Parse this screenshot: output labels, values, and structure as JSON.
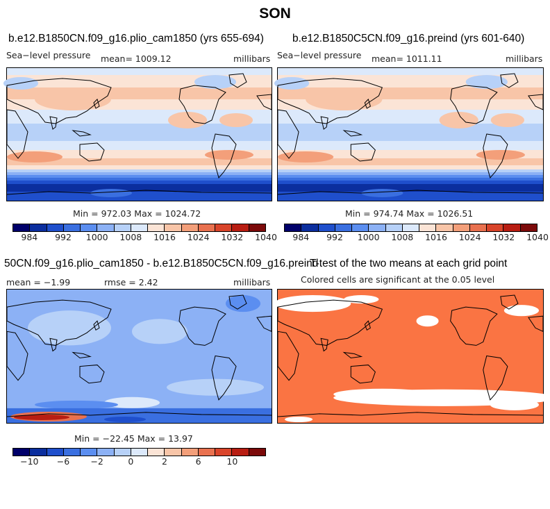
{
  "page_title": "SON",
  "palette": [
    "#00006a",
    "#0b2e9e",
    "#1f4fcc",
    "#3a6fe0",
    "#5b8ef0",
    "#8cb1f5",
    "#b7d1f8",
    "#dce9fb",
    "#fbe4d6",
    "#f8c5a8",
    "#f39f7a",
    "#e9714f",
    "#d9442a",
    "#b81d12",
    "#7c0a0a"
  ],
  "colors": {
    "significant": "#fa7443",
    "not_significant": "#ffffff",
    "coast": "#000000"
  },
  "panels": {
    "p1": {
      "title": "b.e12.B1850CN.f09_g16.plio_cam1850 (yrs 655-694)",
      "variable": "Sea−level pressure",
      "mean": "mean= 1009.12",
      "units": "millibars",
      "minmax": "Min = 972.03 Max = 1024.72"
    },
    "p2": {
      "title": "b.e12.B1850C5CN.f09_g16.preind (yrs 601-640)",
      "variable": "Sea−level pressure",
      "mean": "mean= 1011.11",
      "units": "millibars",
      "minmax": "Min = 974.74 Max = 1026.51"
    },
    "p3": {
      "title": "50CN.f09_g16.plio_cam1850 - b.e12.B1850C5CN.f09_g16.preind",
      "mean": "mean =   −1.99",
      "rmse": "rmse =    2.42",
      "units": "millibars",
      "minmax": "Min = −22.45 Max =   13.97"
    },
    "p4": {
      "title": "T-test of the two means at each grid point",
      "subtitle": "Colored cells are significant at the 0.05 level"
    }
  },
  "legends": {
    "absolute": [
      "984",
      "992",
      "1000",
      "1008",
      "1016",
      "1024",
      "1032",
      "1040"
    ],
    "difference": [
      "−10",
      "−6",
      "−2",
      "0",
      "2",
      "6",
      "10"
    ]
  },
  "chart_data": [
    {
      "type": "heatmap",
      "title": "b.e12.B1850CN.f09_g16.plio_cam1850 (yrs 655-694)",
      "variable": "Sea-level pressure",
      "units": "millibars",
      "mean": 1009.12,
      "min": 972.03,
      "max": 1024.72,
      "levels": [
        984,
        992,
        1000,
        1008,
        1016,
        1024,
        1032,
        1040
      ]
    },
    {
      "type": "heatmap",
      "title": "b.e12.B1850C5CN.f09_g16.preind (yrs 601-640)",
      "variable": "Sea-level pressure",
      "units": "millibars",
      "mean": 1011.11,
      "min": 974.74,
      "max": 1026.51,
      "levels": [
        984,
        992,
        1000,
        1008,
        1016,
        1024,
        1032,
        1040
      ]
    },
    {
      "type": "heatmap",
      "title": "50CN.f09_g16.plio_cam1850 - b.e12.B1850C5CN.f09_g16.preind",
      "units": "millibars",
      "mean": -1.99,
      "rmse": 2.42,
      "min": -22.45,
      "max": 13.97,
      "levels": [
        -10,
        -6,
        -2,
        0,
        2,
        6,
        10
      ]
    },
    {
      "type": "heatmap",
      "title": "T-test of the two means at each grid point",
      "subtitle": "Colored cells are significant at the 0.05 level",
      "significance_level": 0.05
    }
  ]
}
